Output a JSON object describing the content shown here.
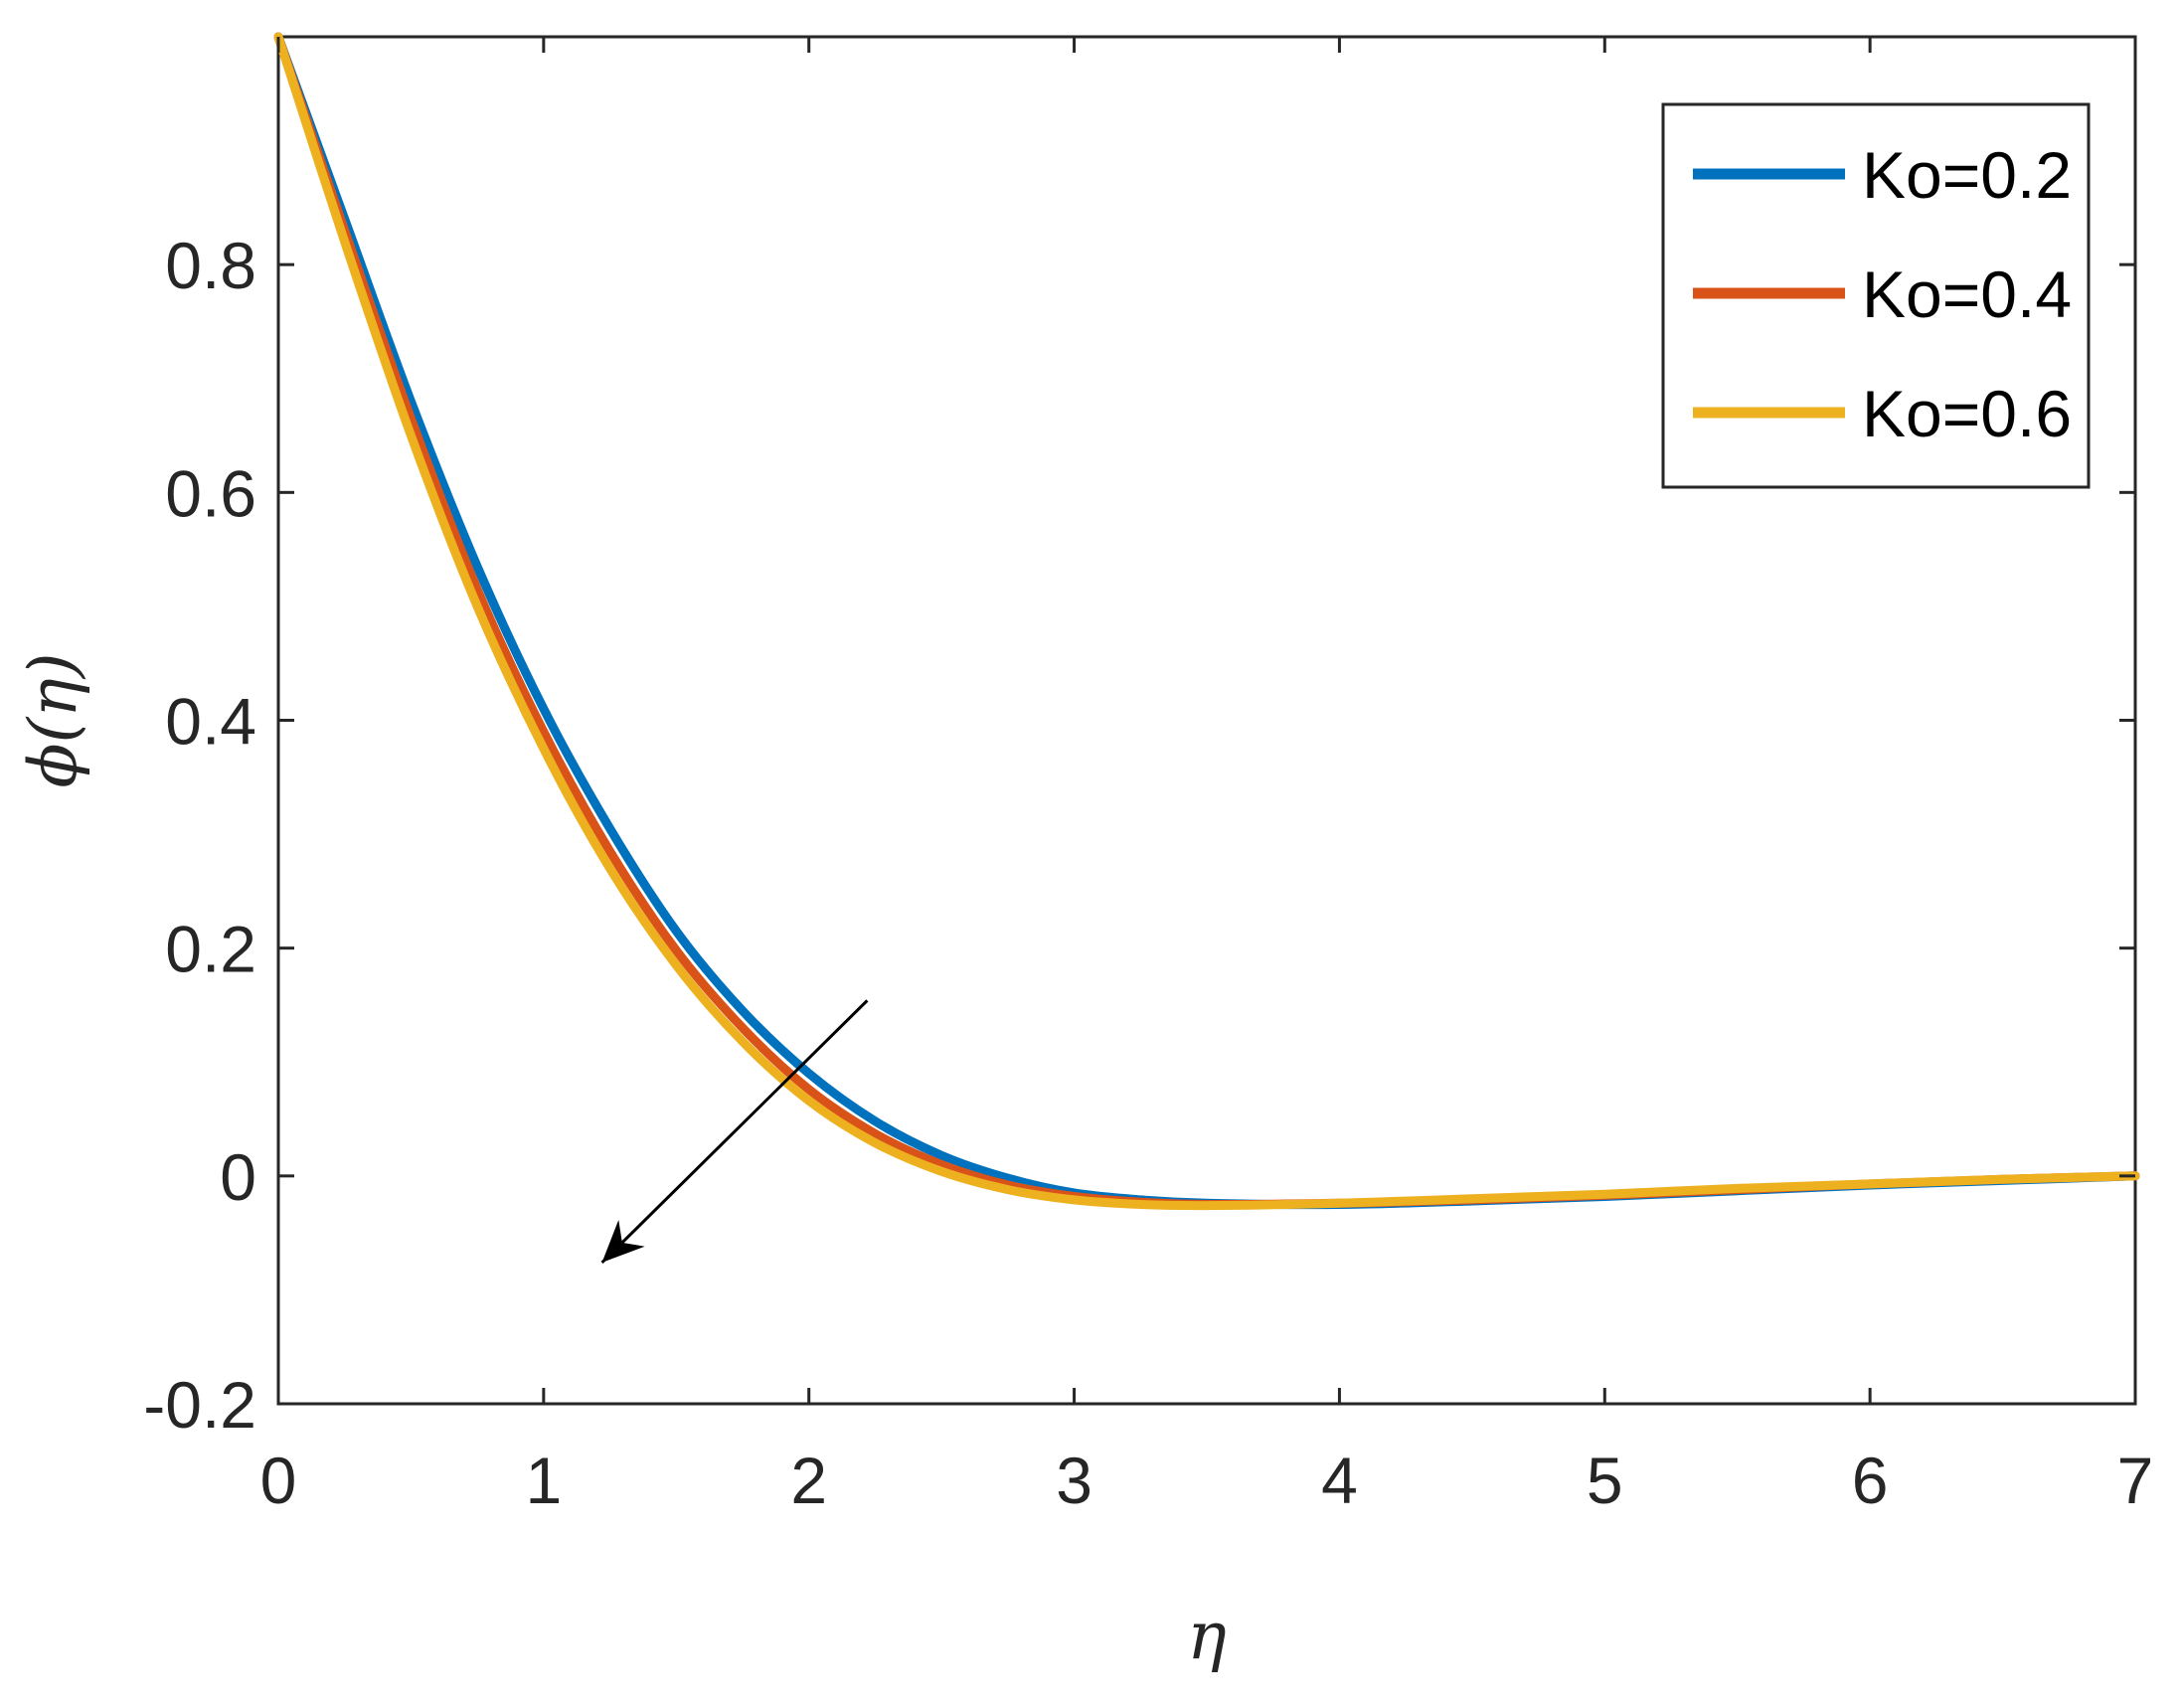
{
  "chart_data": {
    "type": "line",
    "xlabel": "η",
    "ylabel": "ϕ(η)",
    "xlim": [
      0,
      7
    ],
    "ylim": [
      -0.2,
      1.0
    ],
    "x_ticks": [
      0,
      1,
      2,
      3,
      4,
      5,
      6,
      7
    ],
    "x_tick_labels": [
      "0",
      "1",
      "2",
      "3",
      "4",
      "5",
      "6",
      "7"
    ],
    "y_ticks": [
      -0.2,
      0,
      0.2,
      0.4,
      0.6,
      0.8
    ],
    "y_tick_labels": [
      "-0.2",
      "0",
      "0.2",
      "0.4",
      "0.6",
      "0.8"
    ],
    "grid": false,
    "legend_position": "top-right",
    "x": [
      0,
      0.25,
      0.5,
      0.75,
      1.0,
      1.25,
      1.5,
      1.75,
      2.0,
      2.25,
      2.5,
      2.75,
      3.0,
      3.25,
      3.5,
      4.0,
      4.5,
      5.0,
      5.5,
      6.0,
      6.5,
      7.0
    ],
    "series": [
      {
        "name": "Ko=0.2",
        "color": "#0072BD",
        "values": [
          1.0,
          0.84,
          0.68,
          0.535,
          0.41,
          0.305,
          0.215,
          0.145,
          0.09,
          0.048,
          0.018,
          -0.002,
          -0.015,
          -0.021,
          -0.024,
          -0.025,
          -0.022,
          -0.018,
          -0.013,
          -0.008,
          -0.004,
          0.0
        ]
      },
      {
        "name": "Ko=0.4",
        "color": "#D95319",
        "values": [
          1.0,
          0.83,
          0.665,
          0.515,
          0.39,
          0.285,
          0.198,
          0.13,
          0.076,
          0.037,
          0.01,
          -0.008,
          -0.018,
          -0.023,
          -0.025,
          -0.024,
          -0.021,
          -0.017,
          -0.012,
          -0.007,
          -0.003,
          0.0
        ]
      },
      {
        "name": "Ko=0.6",
        "color": "#EDB120",
        "values": [
          1.0,
          0.82,
          0.65,
          0.5,
          0.375,
          0.27,
          0.185,
          0.118,
          0.066,
          0.029,
          0.004,
          -0.012,
          -0.021,
          -0.025,
          -0.026,
          -0.024,
          -0.02,
          -0.016,
          -0.011,
          -0.007,
          -0.003,
          0.0
        ]
      }
    ],
    "annotations": [
      {
        "type": "arrow",
        "from": [
          2.22,
          0.154
        ],
        "to": [
          1.22,
          -0.076
        ]
      }
    ]
  }
}
